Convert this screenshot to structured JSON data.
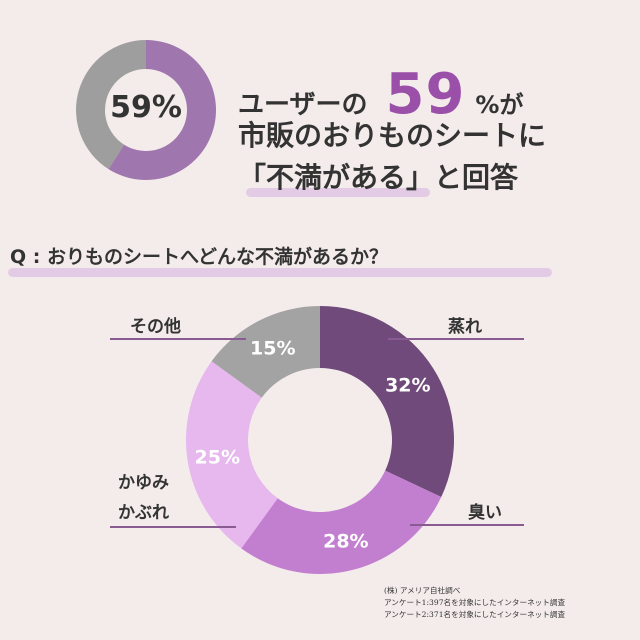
{
  "headline": {
    "top_donut_label": "59%",
    "line1_prefix": "ユーザーの",
    "line1_number": "59",
    "line1_suffix": "%が",
    "line2": "市販のおりものシートに",
    "line3": "「不満がある」と回答"
  },
  "question": "Q : おりものシートへどんな不満があるか？",
  "source": {
    "line1": "(株) アメリア自社調べ",
    "line2": "アンケート1:397名を対象にしたインターネット調査",
    "line3": "アンケート2:371名を対象にしたインターネット調査"
  },
  "chart_data": [
    {
      "type": "pie",
      "donut": true,
      "categories": [
        "不満がある",
        ""
      ],
      "values": [
        59,
        41
      ],
      "colors": [
        "#a076ae",
        "#9e9e9e"
      ],
      "center_label": "59%"
    },
    {
      "type": "pie",
      "donut": true,
      "categories": [
        "蒸れ",
        "臭い",
        "かゆみ かぶれ",
        "その他"
      ],
      "values": [
        32,
        28,
        25,
        15
      ],
      "labels": [
        "32%",
        "28%",
        "25%",
        "15%"
      ],
      "colors": [
        "#6f4a7a",
        "#c27fd0",
        "#e6b8ee",
        "#a3a3a3"
      ]
    }
  ],
  "colors": {
    "background": "#f4eceb",
    "accent": "#9a4fa8",
    "underline": "#e3cbe6",
    "leader_line": "#8a5a92"
  }
}
